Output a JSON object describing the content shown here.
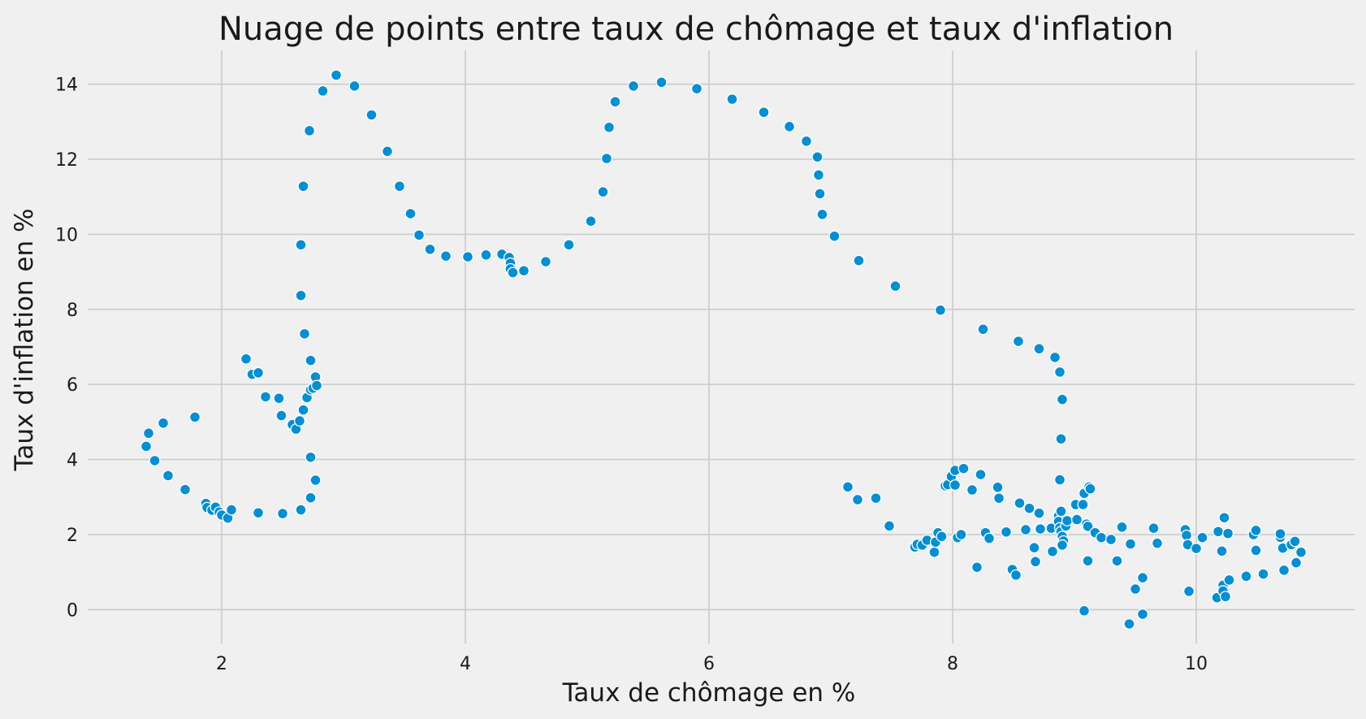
{
  "chart_data": {
    "type": "scatter",
    "title": "Nuage de points entre taux de chômage et taux d'inflation",
    "xlabel": "Taux de chômage en %",
    "ylabel": "Taux d'inflation en %",
    "xlim": [
      0.9,
      11.3
    ],
    "ylim": [
      -0.9,
      14.9
    ],
    "xticks": [
      2,
      4,
      6,
      8,
      10
    ],
    "yticks": [
      0,
      2,
      4,
      6,
      8,
      10,
      12,
      14
    ],
    "grid": true,
    "legend": "none",
    "point_color": "#008fd5",
    "background_color": "#f0f0f0",
    "points": [
      [
        1.38,
        4.35
      ],
      [
        1.4,
        4.7
      ],
      [
        1.45,
        3.97
      ],
      [
        1.52,
        4.97
      ],
      [
        1.56,
        3.57
      ],
      [
        1.7,
        3.2
      ],
      [
        1.78,
        5.13
      ],
      [
        1.87,
        2.83
      ],
      [
        1.88,
        2.72
      ],
      [
        1.92,
        2.65
      ],
      [
        1.95,
        2.73
      ],
      [
        1.98,
        2.6
      ],
      [
        2.0,
        2.52
      ],
      [
        2.05,
        2.44
      ],
      [
        2.08,
        2.66
      ],
      [
        2.2,
        6.68
      ],
      [
        2.25,
        6.27
      ],
      [
        2.3,
        6.31
      ],
      [
        2.36,
        5.67
      ],
      [
        2.3,
        2.58
      ],
      [
        2.47,
        5.63
      ],
      [
        2.49,
        5.17
      ],
      [
        2.5,
        2.56
      ],
      [
        2.58,
        4.93
      ],
      [
        2.61,
        4.81
      ],
      [
        2.64,
        5.03
      ],
      [
        2.67,
        5.32
      ],
      [
        2.7,
        5.65
      ],
      [
        2.73,
        5.86
      ],
      [
        2.75,
        5.9
      ],
      [
        2.77,
        6.2
      ],
      [
        2.78,
        5.97
      ],
      [
        2.73,
        6.64
      ],
      [
        2.68,
        7.35
      ],
      [
        2.65,
        8.37
      ],
      [
        2.65,
        9.72
      ],
      [
        2.67,
        11.28
      ],
      [
        2.72,
        12.76
      ],
      [
        2.83,
        13.82
      ],
      [
        2.94,
        14.24
      ],
      [
        3.09,
        13.95
      ],
      [
        3.23,
        13.18
      ],
      [
        3.36,
        12.21
      ],
      [
        3.46,
        11.28
      ],
      [
        3.55,
        10.55
      ],
      [
        3.62,
        9.98
      ],
      [
        3.71,
        9.6
      ],
      [
        3.84,
        9.42
      ],
      [
        4.02,
        9.4
      ],
      [
        4.17,
        9.45
      ],
      [
        4.3,
        9.47
      ],
      [
        4.36,
        9.38
      ],
      [
        4.37,
        9.23
      ],
      [
        4.37,
        9.08
      ],
      [
        4.39,
        8.98
      ],
      [
        4.48,
        9.03
      ],
      [
        4.66,
        9.27
      ],
      [
        4.85,
        9.72
      ],
      [
        5.03,
        10.35
      ],
      [
        5.13,
        11.13
      ],
      [
        5.16,
        12.02
      ],
      [
        5.18,
        12.85
      ],
      [
        5.23,
        13.53
      ],
      [
        5.38,
        13.95
      ],
      [
        5.61,
        14.05
      ],
      [
        5.9,
        13.88
      ],
      [
        6.19,
        13.6
      ],
      [
        6.45,
        13.25
      ],
      [
        6.66,
        12.87
      ],
      [
        6.8,
        12.48
      ],
      [
        6.89,
        12.06
      ],
      [
        6.9,
        11.58
      ],
      [
        6.91,
        11.08
      ],
      [
        6.93,
        10.53
      ],
      [
        7.03,
        9.95
      ],
      [
        7.23,
        9.3
      ],
      [
        7.53,
        8.62
      ],
      [
        7.9,
        7.98
      ],
      [
        8.25,
        7.47
      ],
      [
        8.54,
        7.15
      ],
      [
        8.71,
        6.95
      ],
      [
        8.84,
        6.72
      ],
      [
        8.88,
        6.33
      ],
      [
        8.9,
        5.6
      ],
      [
        8.89,
        4.55
      ],
      [
        8.88,
        3.46
      ],
      [
        2.65,
        2.66
      ],
      [
        2.73,
        2.98
      ],
      [
        2.77,
        3.45
      ],
      [
        2.73,
        4.06
      ],
      [
        7.14,
        3.27
      ],
      [
        7.22,
        2.93
      ],
      [
        7.37,
        2.97
      ],
      [
        7.48,
        2.23
      ],
      [
        7.69,
        1.67
      ],
      [
        7.71,
        1.74
      ],
      [
        7.75,
        1.72
      ],
      [
        7.79,
        1.85
      ],
      [
        7.85,
        1.53
      ],
      [
        7.86,
        1.8
      ],
      [
        7.88,
        2.05
      ],
      [
        7.91,
        1.95
      ],
      [
        7.94,
        3.3
      ],
      [
        7.96,
        3.33
      ],
      [
        7.99,
        3.55
      ],
      [
        8.02,
        3.71
      ],
      [
        8.02,
        3.32
      ],
      [
        8.04,
        1.92
      ],
      [
        8.07,
        2.0
      ],
      [
        8.09,
        3.76
      ],
      [
        8.16,
        3.19
      ],
      [
        8.2,
        1.13
      ],
      [
        8.23,
        3.6
      ],
      [
        8.27,
        2.05
      ],
      [
        8.3,
        1.9
      ],
      [
        8.37,
        3.26
      ],
      [
        8.38,
        2.97
      ],
      [
        8.44,
        2.07
      ],
      [
        8.49,
        1.07
      ],
      [
        8.52,
        0.92
      ],
      [
        8.55,
        2.84
      ],
      [
        8.6,
        2.13
      ],
      [
        8.63,
        2.7
      ],
      [
        8.67,
        1.65
      ],
      [
        8.68,
        1.28
      ],
      [
        8.71,
        2.57
      ],
      [
        8.72,
        2.15
      ],
      [
        8.81,
        2.17
      ],
      [
        8.82,
        1.55
      ],
      [
        8.87,
        2.5
      ],
      [
        8.87,
        2.35
      ],
      [
        8.89,
        2.62
      ],
      [
        8.88,
        2.18
      ],
      [
        8.89,
        2.08
      ],
      [
        8.9,
        1.95
      ],
      [
        8.91,
        1.83
      ],
      [
        8.9,
        1.72
      ],
      [
        8.93,
        2.23
      ],
      [
        8.94,
        2.37
      ],
      [
        9.01,
        2.8
      ],
      [
        9.02,
        2.4
      ],
      [
        9.07,
        2.8
      ],
      [
        9.08,
        3.1
      ],
      [
        9.1,
        2.28
      ],
      [
        9.11,
        2.22
      ],
      [
        9.12,
        3.27
      ],
      [
        9.13,
        3.22
      ],
      [
        9.17,
        2.05
      ],
      [
        9.22,
        1.92
      ],
      [
        9.08,
        -0.03
      ],
      [
        9.11,
        1.3
      ],
      [
        9.3,
        1.87
      ],
      [
        9.35,
        1.3
      ],
      [
        9.39,
        2.2
      ],
      [
        9.45,
        -0.38
      ],
      [
        9.46,
        1.75
      ],
      [
        9.5,
        0.55
      ],
      [
        9.56,
        0.85
      ],
      [
        9.56,
        -0.12
      ],
      [
        9.65,
        2.17
      ],
      [
        9.68,
        1.77
      ],
      [
        9.91,
        2.13
      ],
      [
        9.92,
        1.98
      ],
      [
        9.93,
        1.73
      ],
      [
        9.94,
        0.49
      ],
      [
        10.0,
        1.63
      ],
      [
        10.05,
        1.92
      ],
      [
        10.17,
        0.32
      ],
      [
        10.18,
        2.08
      ],
      [
        10.21,
        1.56
      ],
      [
        10.22,
        0.65
      ],
      [
        10.22,
        0.5
      ],
      [
        10.23,
        2.45
      ],
      [
        10.24,
        0.35
      ],
      [
        10.26,
        2.03
      ],
      [
        10.27,
        0.79
      ],
      [
        10.41,
        0.89
      ],
      [
        10.47,
        2.0
      ],
      [
        10.49,
        2.11
      ],
      [
        10.49,
        1.58
      ],
      [
        10.55,
        0.95
      ],
      [
        10.69,
        1.93
      ],
      [
        10.69,
        2.02
      ],
      [
        10.71,
        1.64
      ],
      [
        10.72,
        1.05
      ],
      [
        10.78,
        1.73
      ],
      [
        10.81,
        1.82
      ],
      [
        10.82,
        1.25
      ],
      [
        10.86,
        1.53
      ]
    ]
  }
}
